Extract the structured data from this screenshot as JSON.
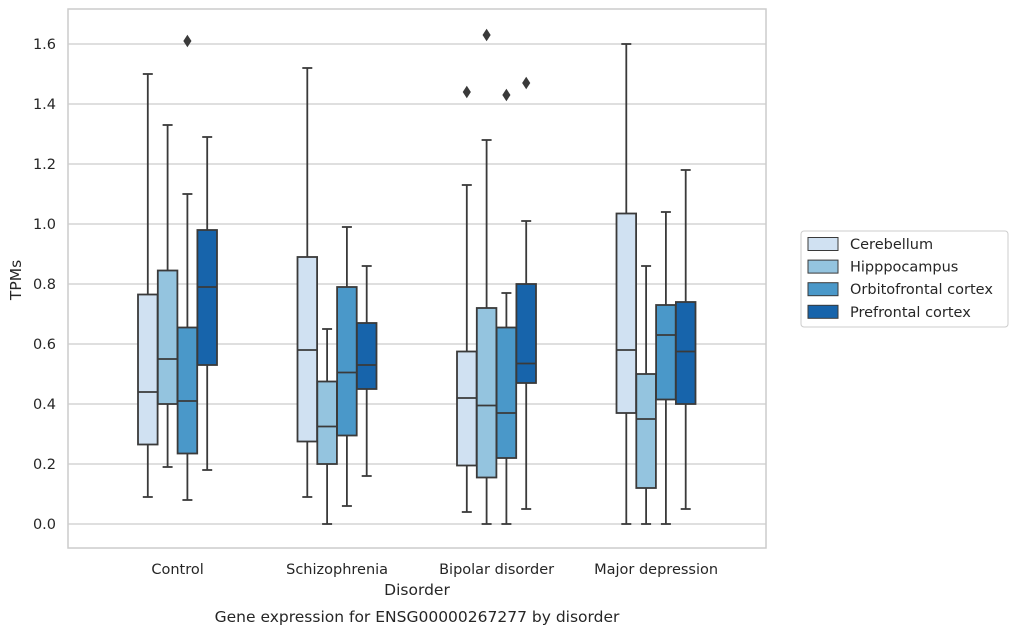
{
  "chart_data": {
    "type": "box",
    "xlabel": "Disorder",
    "ylabel": "TPMs",
    "caption": "Gene expression for ENSG00000267277 by disorder",
    "ylim": [
      -0.08,
      1.72
    ],
    "yticks": [
      "0.0",
      "0.2",
      "0.4",
      "0.6",
      "0.8",
      "1.0",
      "1.2",
      "1.4",
      "1.6"
    ],
    "grid": "horizontal",
    "legend_position": "right",
    "categories": [
      "Control",
      "Schizophrenia",
      "Bipolar disorder",
      "Major depression"
    ],
    "series": [
      {
        "name": "Cerebellum",
        "color": "#d0e1f2",
        "boxes": [
          {
            "whisker_low": 0.09,
            "q1": 0.265,
            "median": 0.44,
            "q3": 0.765,
            "whisker_high": 1.5,
            "outliers": []
          },
          {
            "whisker_low": 0.09,
            "q1": 0.275,
            "median": 0.58,
            "q3": 0.89,
            "whisker_high": 1.52,
            "outliers": []
          },
          {
            "whisker_low": 0.04,
            "q1": 0.195,
            "median": 0.42,
            "q3": 0.575,
            "whisker_high": 1.13,
            "outliers": [
              1.44
            ]
          },
          {
            "whisker_low": 0.0,
            "q1": 0.37,
            "median": 0.58,
            "q3": 1.035,
            "whisker_high": 1.6,
            "outliers": []
          }
        ]
      },
      {
        "name": "Hipppocampus",
        "color": "#94c4df",
        "boxes": [
          {
            "whisker_low": 0.19,
            "q1": 0.4,
            "median": 0.55,
            "q3": 0.845,
            "whisker_high": 1.33,
            "outliers": []
          },
          {
            "whisker_low": 0.0,
            "q1": 0.2,
            "median": 0.325,
            "q3": 0.475,
            "whisker_high": 0.65,
            "outliers": []
          },
          {
            "whisker_low": 0.0,
            "q1": 0.155,
            "median": 0.395,
            "q3": 0.72,
            "whisker_high": 1.28,
            "outliers": [
              1.63
            ]
          },
          {
            "whisker_low": 0.0,
            "q1": 0.12,
            "median": 0.35,
            "q3": 0.5,
            "whisker_high": 0.86,
            "outliers": []
          }
        ]
      },
      {
        "name": "Orbitofrontal cortex",
        "color": "#4a98c9",
        "boxes": [
          {
            "whisker_low": 0.08,
            "q1": 0.235,
            "median": 0.41,
            "q3": 0.655,
            "whisker_high": 1.1,
            "outliers": [
              1.61
            ]
          },
          {
            "whisker_low": 0.06,
            "q1": 0.295,
            "median": 0.505,
            "q3": 0.79,
            "whisker_high": 0.99,
            "outliers": []
          },
          {
            "whisker_low": 0.0,
            "q1": 0.22,
            "median": 0.37,
            "q3": 0.655,
            "whisker_high": 0.77,
            "outliers": [
              1.43
            ]
          },
          {
            "whisker_low": 0.0,
            "q1": 0.415,
            "median": 0.63,
            "q3": 0.73,
            "whisker_high": 1.04,
            "outliers": []
          }
        ]
      },
      {
        "name": "Prefrontal cortex",
        "color": "#1764ab",
        "boxes": [
          {
            "whisker_low": 0.18,
            "q1": 0.53,
            "median": 0.79,
            "q3": 0.98,
            "whisker_high": 1.29,
            "outliers": []
          },
          {
            "whisker_low": 0.16,
            "q1": 0.45,
            "median": 0.53,
            "q3": 0.67,
            "whisker_high": 0.86,
            "outliers": []
          },
          {
            "whisker_low": 0.05,
            "q1": 0.47,
            "median": 0.535,
            "q3": 0.8,
            "whisker_high": 1.01,
            "outliers": [
              1.47
            ]
          },
          {
            "whisker_low": 0.05,
            "q1": 0.4,
            "median": 0.575,
            "q3": 0.74,
            "whisker_high": 1.18,
            "outliers": []
          }
        ]
      }
    ],
    "colors": {
      "frame": "#cccccc",
      "grid": "#cccccc",
      "stroke": "#3a3a3a",
      "text": "#262626",
      "background": "#ffffff"
    }
  }
}
